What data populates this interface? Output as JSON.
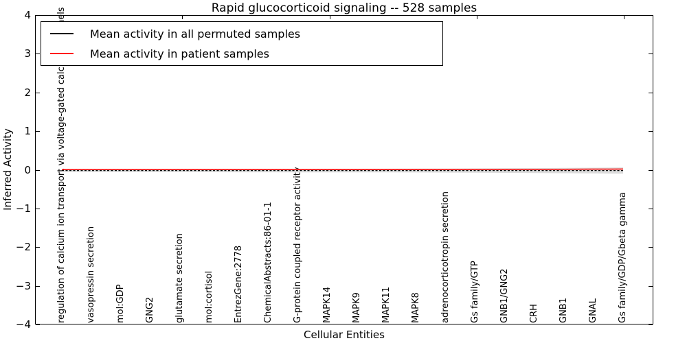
{
  "title": "Rapid glucocorticoid signaling -- 528 samples",
  "legend": {
    "entries": [
      {
        "label": "Mean activity in all permuted samples",
        "color": "#000000"
      },
      {
        "label": "Mean activity in patient samples",
        "color": "#ff0000"
      }
    ]
  },
  "y_axis": {
    "label": "Inferred Activity",
    "ticks": [
      "4",
      "3",
      "2",
      "1",
      "0",
      "−1",
      "−2",
      "−3",
      "−4"
    ]
  },
  "x_axis": {
    "label": "Cellular Entities"
  },
  "chart_data": {
    "type": "line",
    "title": "Rapid glucocorticoid signaling -- 528 samples",
    "xlabel": "Cellular Entities",
    "ylabel": "Inferred Activity",
    "ylim": [
      -4,
      4
    ],
    "grid": false,
    "legend_position": "upper left",
    "categories": [
      "regulation of calcium ion transport via voltage-gated calcium channels",
      "vasopressin secretion",
      "mol:GDP",
      "GNG2",
      "glutamate secretion",
      "mol:cortisol",
      "EntrezGene:2778",
      "ChemicalAbstracts:86-01-1",
      "G-protein coupled receptor activity",
      "MAPK14",
      "MAPK9",
      "MAPK11",
      "MAPK8",
      "adrenocorticotropin secretion",
      "Gs family/GTP",
      "GNB1/GNG2",
      "CRH",
      "GNB1",
      "GNAL",
      "Gs family/GDP/Gbeta gamma"
    ],
    "series": [
      {
        "name": "Mean activity in all permuted samples",
        "color": "#000000",
        "style": "dashed",
        "values": [
          -0.02,
          -0.02,
          -0.02,
          -0.02,
          -0.02,
          -0.02,
          -0.02,
          -0.02,
          -0.02,
          -0.02,
          -0.02,
          -0.02,
          -0.02,
          -0.02,
          -0.02,
          -0.02,
          -0.02,
          -0.02,
          -0.02,
          -0.02
        ]
      },
      {
        "name": "Mean activity in patient samples",
        "color": "#ff0000",
        "style": "solid",
        "values": [
          0.004,
          0.004,
          0.004,
          0.004,
          0.004,
          0.004,
          0.005,
          0.005,
          0.005,
          0.005,
          0.005,
          0.006,
          0.006,
          0.007,
          0.008,
          0.009,
          0.011,
          0.014,
          0.017,
          0.019
        ]
      },
      {
        "name": "permuted samples std band (half-width)",
        "color": "#dcdcdc",
        "style": "band",
        "values": [
          0.035,
          0.037,
          0.039,
          0.04,
          0.041,
          0.042,
          0.043,
          0.044,
          0.045,
          0.046,
          0.047,
          0.048,
          0.05,
          0.052,
          0.055,
          0.059,
          0.063,
          0.068,
          0.074,
          0.08
        ]
      }
    ]
  }
}
